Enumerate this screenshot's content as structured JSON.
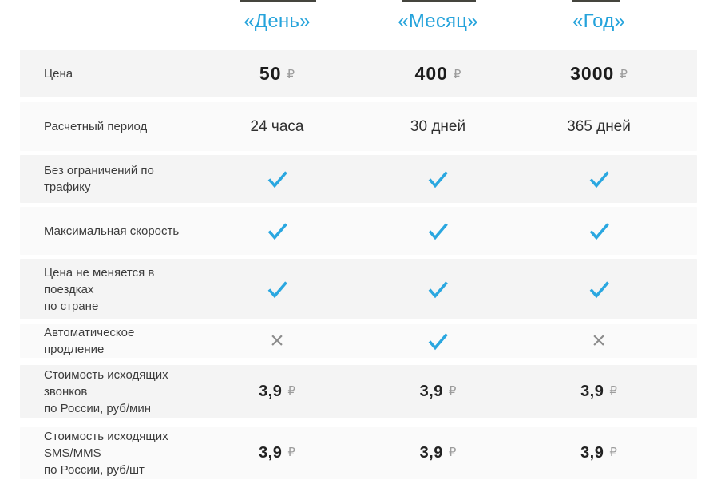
{
  "columns": [
    "«День»",
    "«Месяц»",
    "«Год»"
  ],
  "currency_symbol": "₽",
  "rows": [
    {
      "label": "Цена",
      "type": "price",
      "values": [
        "50",
        "400",
        "3000"
      ]
    },
    {
      "label": "Расчетный период",
      "type": "text",
      "values": [
        "24 часа",
        "30 дней",
        "365 дней"
      ]
    },
    {
      "label": "Без ограничений по трафику",
      "type": "bool",
      "values": [
        true,
        true,
        true
      ]
    },
    {
      "label": "Максимальная скорость",
      "type": "bool",
      "values": [
        true,
        true,
        true
      ]
    },
    {
      "label": "Цена не меняется в поездках\nпо стране",
      "type": "bool",
      "values": [
        true,
        true,
        true
      ]
    },
    {
      "label": "Автоматическое продление",
      "type": "bool",
      "values": [
        false,
        true,
        false
      ]
    },
    {
      "label": "Стоимость исходящих звонков\nпо России, руб/мин",
      "type": "price-small",
      "values": [
        "3,9",
        "3,9",
        "3,9"
      ]
    },
    {
      "label": "Стоимость исходящих SMS/MMS\nпо России, руб/шт",
      "type": "price-small",
      "values": [
        "3,9",
        "3,9",
        "3,9"
      ]
    }
  ],
  "colors": {
    "accent_blue": "#25a3db",
    "check_blue": "#2aa7e0",
    "cross_gray": "#8c8c8c",
    "row_dark": "#f4f4f4",
    "row_light": "#fafafa"
  }
}
